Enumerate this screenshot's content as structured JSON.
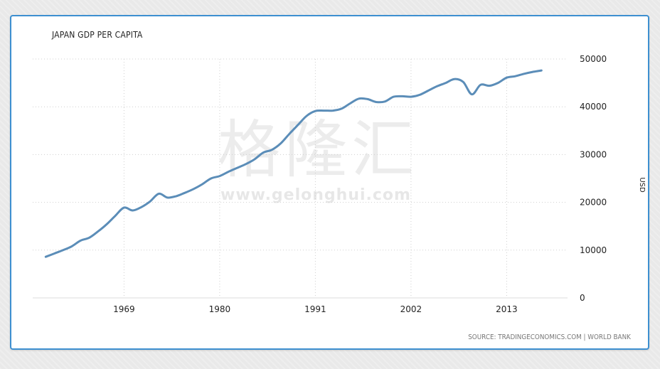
{
  "chart_data": {
    "type": "line",
    "title": "JAPAN GDP PER CAPITA",
    "ylabel": "USD",
    "xlabel": "",
    "source": "SOURCE: TRADINGECONOMICS.COM | WORLD BANK",
    "x_ticks": [
      1969,
      1980,
      1991,
      2002,
      2013
    ],
    "y_ticks": [
      0,
      10000,
      20000,
      30000,
      40000,
      50000
    ],
    "xlim": [
      1958.5,
      2020
    ],
    "ylim": [
      0,
      50000
    ],
    "grid": true,
    "line_color": "#5b8db8",
    "series": [
      {
        "x": [
          1960,
          1961,
          1962,
          1963,
          1964,
          1965,
          1966,
          1967,
          1968,
          1969,
          1970,
          1971,
          1972,
          1973,
          1974,
          1975,
          1976,
          1977,
          1978,
          1979,
          1980,
          1981,
          1982,
          1983,
          1984,
          1985,
          1986,
          1987,
          1988,
          1989,
          1990,
          1991,
          1992,
          1993,
          1994,
          1995,
          1996,
          1997,
          1998,
          1999,
          2000,
          2001,
          2002,
          2003,
          2004,
          2005,
          2006,
          2007,
          2008,
          2009,
          2010,
          2011,
          2012,
          2013,
          2014,
          2015,
          2016,
          2017
        ],
        "y": [
          8600,
          9300,
          10000,
          10800,
          12000,
          12600,
          13900,
          15400,
          17200,
          18900,
          18300,
          19000,
          20200,
          21800,
          21000,
          21300,
          22000,
          22800,
          23800,
          25000,
          25500,
          26400,
          27200,
          28000,
          29000,
          30400,
          31000,
          32300,
          34300,
          36200,
          38100,
          39100,
          39200,
          39200,
          39600,
          40700,
          41700,
          41600,
          41000,
          41100,
          42100,
          42200,
          42100,
          42500,
          43400,
          44300,
          45000,
          45800,
          45200,
          42600,
          44600,
          44400,
          45000,
          46100,
          46400,
          46900,
          47300,
          47600
        ]
      }
    ]
  },
  "watermark": {
    "chinese": "格隆汇",
    "url": "www.gelonghui.com"
  }
}
